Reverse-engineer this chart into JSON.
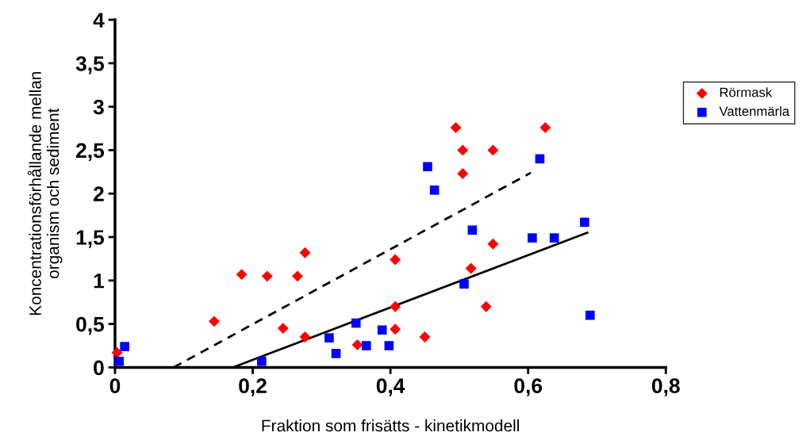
{
  "chart_data": {
    "type": "scatter",
    "xlabel": "Fraktion som frisätts - kinetikmodell",
    "ylabel": "Koncentrationsförhållande mellan\norganism och sediment",
    "xlim": [
      0,
      0.8
    ],
    "xticks": [
      0,
      {
        "value": 0.2,
        "label": "0,2"
      },
      {
        "value": 0.4,
        "label": "0,4"
      },
      {
        "value": 0.6,
        "label": "0,6"
      },
      {
        "value": 0.8,
        "label": "0,8"
      }
    ],
    "ylim": [
      0,
      4
    ],
    "yticks": [
      0,
      {
        "value": 0.5,
        "label": "0,5"
      },
      1,
      {
        "value": 1.5,
        "label": "1,5"
      },
      2,
      {
        "value": 2.5,
        "label": "2,5"
      },
      3,
      {
        "value": 3.5,
        "label": "3,5"
      },
      4
    ],
    "grid": false,
    "legend": "right",
    "series": [
      {
        "name": "Rörmask",
        "marker": "diamond",
        "color": "#ff0000",
        "x": [
          0.003,
          0.144,
          0.184,
          0.221,
          0.265,
          0.276,
          0.244,
          0.276,
          0.352,
          0.407,
          0.407,
          0.407,
          0.45,
          0.495,
          0.505,
          0.505,
          0.549,
          0.517,
          0.549,
          0.539,
          0.625
        ],
        "values": [
          0.17,
          0.53,
          1.07,
          1.05,
          1.05,
          1.32,
          0.45,
          0.35,
          0.26,
          1.24,
          0.7,
          0.44,
          0.35,
          2.76,
          2.5,
          2.23,
          2.5,
          1.14,
          1.42,
          0.7,
          2.76
        ]
      },
      {
        "name": "Vattenmärla",
        "marker": "square",
        "color": "#0000ff",
        "x": [
          0.006,
          0.014,
          0.213,
          0.311,
          0.321,
          0.35,
          0.365,
          0.388,
          0.398,
          0.454,
          0.464,
          0.519,
          0.507,
          0.606,
          0.638,
          0.682,
          0.69,
          0.617
        ],
        "values": [
          0.07,
          0.24,
          0.07,
          0.34,
          0.16,
          0.51,
          0.25,
          0.43,
          0.25,
          2.31,
          2.04,
          1.58,
          0.96,
          1.49,
          1.49,
          1.67,
          0.6,
          2.4
        ]
      },
      {
        "type": "line",
        "line_style": "dashed",
        "color": "#000000",
        "x": [
          0.085,
          0.604
        ],
        "values": [
          0,
          2.24
        ]
      },
      {
        "type": "line",
        "line_style": "solid",
        "color": "#000000",
        "x": [
          0.171,
          0.686
        ],
        "values": [
          0,
          1.55
        ]
      }
    ]
  }
}
